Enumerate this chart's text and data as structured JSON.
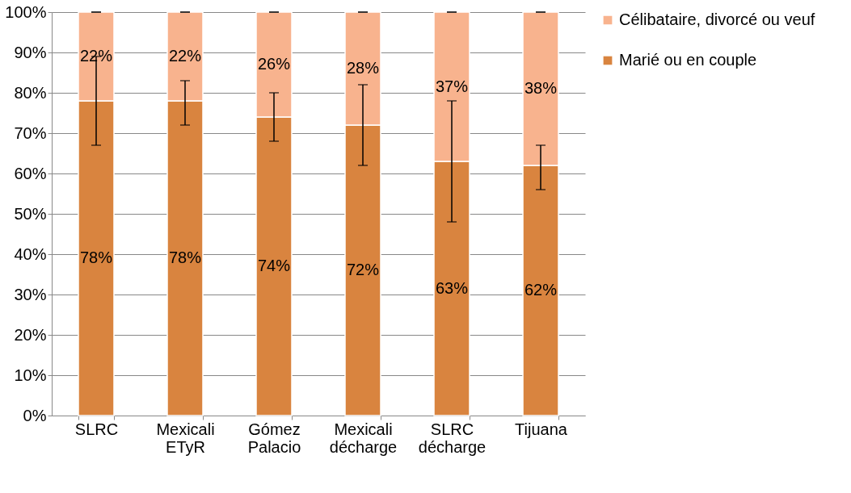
{
  "chart_data": {
    "type": "bar",
    "stacked": true,
    "categories": [
      "SLRC",
      "Mexicali ETyR",
      "Gómez Palacio",
      "Mexicali décharge",
      "SLRC décharge",
      "Tijuana"
    ],
    "series": [
      {
        "name": "Marié ou en couple",
        "color": "#d9843f",
        "values": [
          78,
          78,
          74,
          72,
          63,
          62
        ],
        "value_labels": [
          "78%",
          "78%",
          "74%",
          "72%",
          "63%",
          "62%"
        ],
        "errors": [
          [
            67,
            89
          ],
          [
            72,
            83
          ],
          [
            68,
            80
          ],
          [
            62,
            82
          ],
          [
            48,
            78
          ],
          [
            56,
            67
          ]
        ]
      },
      {
        "name": "Célibataire, divorcé ou veuf",
        "color": "#f8b38e",
        "values": [
          22,
          22,
          26,
          28,
          37,
          38
        ],
        "value_labels": [
          "22%",
          "22%",
          "26%",
          "28%",
          "37%",
          "38%"
        ],
        "errors": [
          [
            100,
            100
          ],
          [
            100,
            100
          ],
          [
            100,
            100
          ],
          [
            100,
            100
          ],
          [
            100,
            100
          ],
          [
            100,
            100
          ]
        ]
      }
    ],
    "ylim": [
      0,
      100
    ],
    "yticks": [
      {
        "value": 0,
        "label": "0%"
      },
      {
        "value": 10,
        "label": "10%"
      },
      {
        "value": 20,
        "label": "20%"
      },
      {
        "value": 30,
        "label": "30%"
      },
      {
        "value": 40,
        "label": "40%"
      },
      {
        "value": 50,
        "label": "50%"
      },
      {
        "value": 60,
        "label": "60%"
      },
      {
        "value": 70,
        "label": "70%"
      },
      {
        "value": 80,
        "label": "80%"
      },
      {
        "value": 90,
        "label": "90%"
      },
      {
        "value": 100,
        "label": "100%"
      }
    ],
    "grid": "y",
    "legend": "right"
  }
}
